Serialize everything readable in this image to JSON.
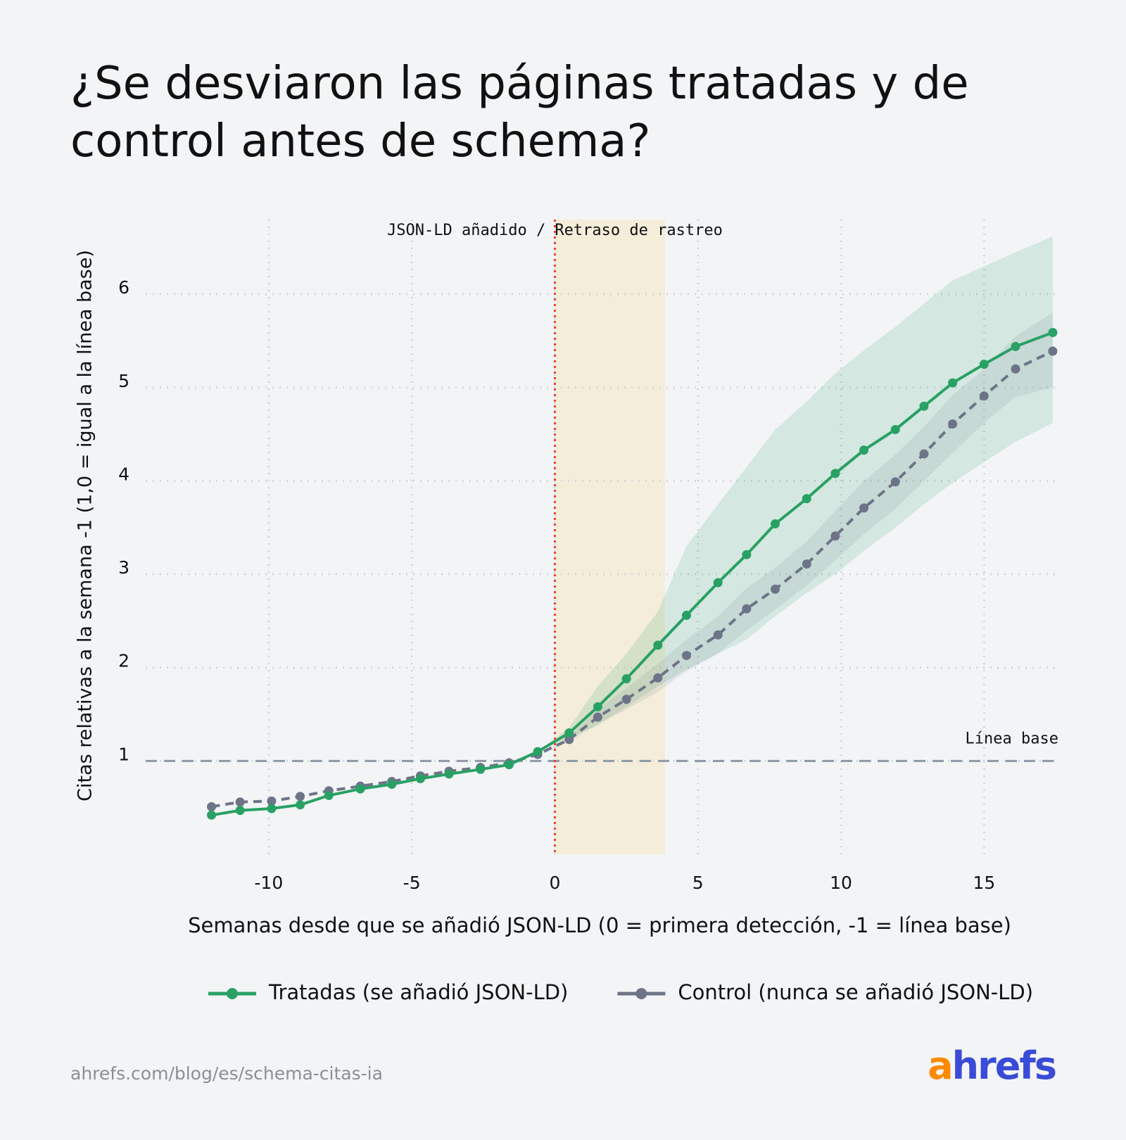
{
  "chart_data": {
    "type": "line",
    "title": "¿Se desviaron las páginas tratadas y de control antes de schema?",
    "xlabel": "Semanas desde que se añadió JSON-LD (0 = primera detección, -1 = línea base)",
    "ylabel": "Citas relativas a la semana -1 (1,0 = igual a la línea base)",
    "x": [
      -12.0,
      -11.0,
      -9.9,
      -8.9,
      -7.9,
      -6.8,
      -5.7,
      -4.7,
      -3.7,
      -2.6,
      -1.6,
      -0.6,
      0.5,
      1.5,
      2.5,
      3.6,
      4.6,
      5.7,
      6.7,
      7.7,
      8.8,
      9.8,
      10.8,
      11.9,
      12.9,
      13.9,
      15.0,
      16.1,
      17.4
    ],
    "series": [
      {
        "name": "Tratadas (se añadió JSON-LD)",
        "color": "#2aa164",
        "dashed": false,
        "values": [
          0.42,
          0.47,
          0.49,
          0.53,
          0.63,
          0.7,
          0.75,
          0.81,
          0.86,
          0.91,
          0.96,
          1.1,
          1.3,
          1.58,
          1.88,
          2.24,
          2.56,
          2.91,
          3.21,
          3.54,
          3.81,
          4.08,
          4.33,
          4.55,
          4.8,
          5.05,
          5.25,
          5.44,
          5.59
        ],
        "lower": [
          null,
          null,
          null,
          null,
          null,
          null,
          null,
          null,
          null,
          null,
          null,
          1.1,
          1.25,
          1.38,
          1.58,
          1.8,
          1.98,
          2.15,
          2.3,
          2.55,
          2.8,
          3.0,
          3.25,
          3.5,
          3.75,
          3.98,
          4.2,
          4.42,
          4.62
        ],
        "upper": [
          null,
          null,
          null,
          null,
          null,
          null,
          null,
          null,
          null,
          null,
          null,
          1.1,
          1.36,
          1.8,
          2.15,
          2.6,
          3.3,
          3.75,
          4.15,
          4.55,
          4.85,
          5.15,
          5.4,
          5.65,
          5.9,
          6.15,
          6.3,
          6.45,
          6.62
        ]
      },
      {
        "name": "Control (nunca se añadió JSON-LD)",
        "color": "#6e7488",
        "dashed": true,
        "values": [
          0.51,
          0.56,
          0.57,
          0.62,
          0.68,
          0.73,
          0.78,
          0.84,
          0.89,
          0.93,
          0.98,
          1.07,
          1.23,
          1.47,
          1.66,
          1.89,
          2.13,
          2.35,
          2.63,
          2.84,
          3.11,
          3.41,
          3.71,
          3.99,
          4.29,
          4.61,
          4.91,
          5.2,
          5.39
        ],
        "lower": [
          null,
          null,
          null,
          null,
          null,
          null,
          null,
          null,
          null,
          null,
          null,
          1.07,
          1.2,
          1.4,
          1.55,
          1.74,
          1.96,
          2.15,
          2.4,
          2.62,
          2.88,
          3.15,
          3.43,
          3.7,
          4.0,
          4.3,
          4.62,
          4.9,
          5.0
        ],
        "upper": [
          null,
          null,
          null,
          null,
          null,
          null,
          null,
          null,
          null,
          null,
          null,
          1.07,
          1.26,
          1.55,
          1.78,
          2.04,
          2.3,
          2.55,
          2.85,
          3.07,
          3.35,
          3.68,
          4.0,
          4.28,
          4.58,
          4.92,
          5.2,
          5.55,
          5.8
        ]
      }
    ],
    "xlim": [
      -14.3,
      17.5
    ],
    "ylim": [
      0,
      6.8
    ],
    "xticks": [
      -10,
      -5,
      0,
      5,
      10,
      15
    ],
    "yticks": [
      1,
      2,
      3,
      4,
      5,
      6
    ],
    "grid": true,
    "shade": {
      "x": [
        0,
        3.85
      ],
      "label": "JSON-LD añadido / Retraso de rastreo",
      "color": "#f3edd9"
    },
    "event_line": {
      "x": 0,
      "color": "#e8452c"
    },
    "baseline": {
      "y": 1,
      "label": "Línea base",
      "color": "#8e99a8"
    },
    "legend": "bottom"
  },
  "source": "ahrefs.com/blog/es/schema-citas-ia",
  "logo": [
    "a",
    "hrefs"
  ]
}
